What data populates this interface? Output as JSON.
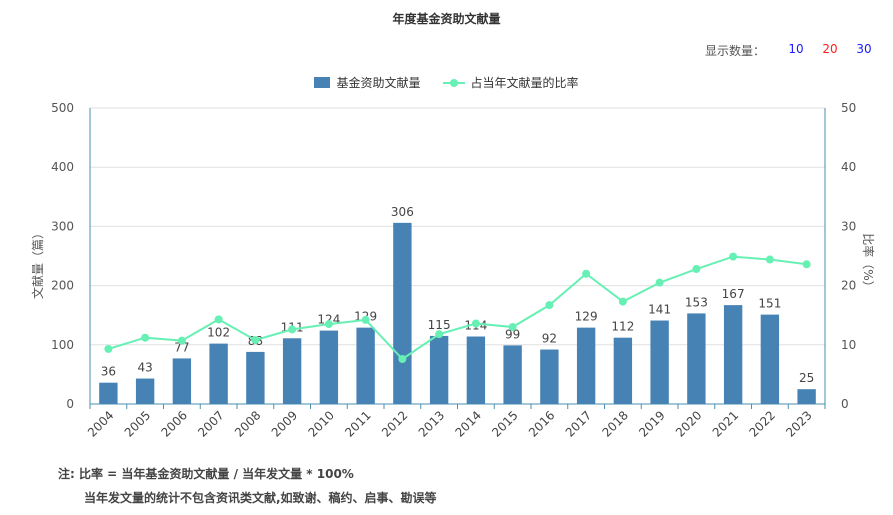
{
  "title": "年度基金资助文献量",
  "display_count": {
    "label": "显示数量：",
    "options": [
      {
        "label": "10",
        "color": "#1a1aff"
      },
      {
        "label": "20",
        "color": "#ff2020"
      },
      {
        "label": "30",
        "color": "#1a1aff"
      }
    ]
  },
  "legend": {
    "bar_label": "基金资助文献量",
    "line_label": "占当年文献量的比率"
  },
  "notes": {
    "line1": "注:   比率 = 当年基金资助文献量 / 当年发文量 * 100%",
    "line2": "当年发文量的统计不包含资讯类文献,如致谢、稿约、启事、勘误等"
  },
  "chart_data": {
    "type": "bar",
    "categories": [
      "2004",
      "2005",
      "2006",
      "2007",
      "2008",
      "2009",
      "2010",
      "2011",
      "2012",
      "2013",
      "2014",
      "2015",
      "2016",
      "2017",
      "2018",
      "2019",
      "2020",
      "2021",
      "2022",
      "2023"
    ],
    "series": [
      {
        "name": "基金资助文献量",
        "type": "bar",
        "axis": "left",
        "color": "#4682b4",
        "values": [
          36,
          43,
          77,
          102,
          88,
          111,
          124,
          129,
          306,
          115,
          114,
          99,
          92,
          129,
          112,
          141,
          153,
          167,
          151,
          25
        ]
      },
      {
        "name": "占当年文献量的比率",
        "type": "line",
        "axis": "right",
        "color": "#66f0b4",
        "values": [
          9.3,
          11.2,
          10.7,
          14.3,
          10.8,
          12.6,
          13.5,
          14.2,
          7.6,
          11.8,
          13.6,
          13.0,
          16.7,
          22.0,
          17.3,
          20.5,
          22.8,
          24.9,
          24.4,
          23.6
        ]
      }
    ],
    "ylabel": "文献量（篇）",
    "y2label": "比率（%）",
    "ylim": [
      0,
      500
    ],
    "y2lim": [
      0,
      50
    ],
    "yticks": [
      0,
      100,
      200,
      300,
      400,
      500
    ],
    "y2ticks": [
      0,
      10,
      20,
      30,
      40,
      50
    ],
    "grid": true,
    "legend_position": "top-center"
  }
}
